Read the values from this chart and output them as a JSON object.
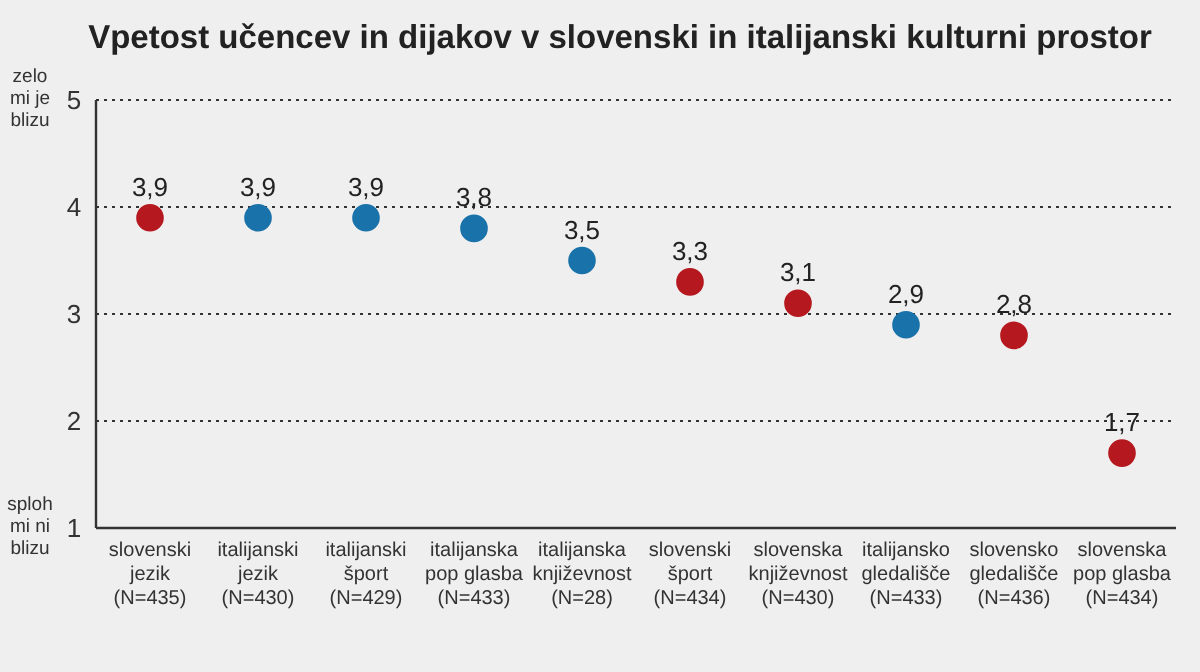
{
  "chart_data": {
    "type": "scatter",
    "title": "Vpetost učencev in dijakov v slovenski in italijanski kulturni prostor",
    "categories": [
      "slovenski\njezik\n(N=435)",
      "italijanski\njezik\n(N=430)",
      "italijanski\nšport\n(N=429)",
      "italijanska\npop glasba\n(N=433)",
      "italijanska\nknjiževnost\n(N=28)",
      "slovenski\nšport\n(N=434)",
      "slovenska\nknjiževnost\n(N=430)",
      "italijansko\ngledališče\n(N=433)",
      "slovensko\ngledališče\n(N=436)",
      "slovenska\npop glasba\n(N=434)"
    ],
    "values": [
      3.9,
      3.9,
      3.9,
      3.8,
      3.5,
      3.3,
      3.1,
      2.9,
      2.8,
      1.7
    ],
    "colors": [
      "#b5191f",
      "#1a72aa",
      "#1a72aa",
      "#1a72aa",
      "#1a72aa",
      "#b5191f",
      "#b5191f",
      "#1a72aa",
      "#b5191f",
      "#b5191f"
    ],
    "value_labels": [
      "3,9",
      "3,9",
      "3,9",
      "3,8",
      "3,5",
      "3,3",
      "3,1",
      "2,9",
      "2,8",
      "1,7"
    ],
    "ylim": [
      1,
      5
    ],
    "yticks": [
      1,
      2,
      3,
      4,
      5
    ],
    "grid": "y",
    "marker": "circle",
    "annotations": [
      "zelo mi je blizu",
      "sploh mi ni blizu"
    ]
  }
}
